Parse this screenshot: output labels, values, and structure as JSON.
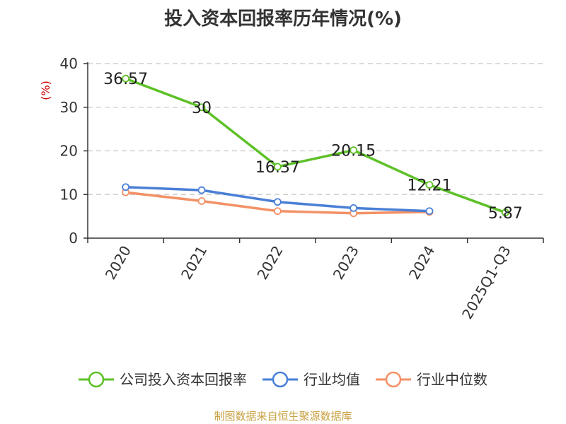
{
  "title": "投入资本回报率历年情况(%)",
  "source": "制图数据来自恒生聚源数据库",
  "chart_data": {
    "type": "line",
    "title": "投入资本回报率历年情况(%)",
    "ylabel": "(%)",
    "ylim": [
      0,
      40
    ],
    "yticks": [
      0,
      10,
      20,
      30,
      40
    ],
    "grid": true,
    "legend_position": "bottom",
    "categories": [
      "2020",
      "2021",
      "2022",
      "2023",
      "2024",
      "2025Q1-Q3"
    ],
    "series": [
      {
        "name": "公司投入资本回报率",
        "color": "#5dc127",
        "values": [
          36.57,
          30,
          16.37,
          20.15,
          12.21,
          5.87
        ],
        "labels": [
          "36.57",
          "30",
          "16.37",
          "20.15",
          "12.21",
          "5.87"
        ]
      },
      {
        "name": "行业均值",
        "color": "#4a7fd6",
        "values": [
          11.7,
          11.0,
          8.3,
          6.9,
          6.2,
          null
        ]
      },
      {
        "name": "行业中位数",
        "color": "#f39166",
        "values": [
          10.5,
          8.5,
          6.2,
          5.7,
          6.0,
          null
        ]
      }
    ]
  }
}
